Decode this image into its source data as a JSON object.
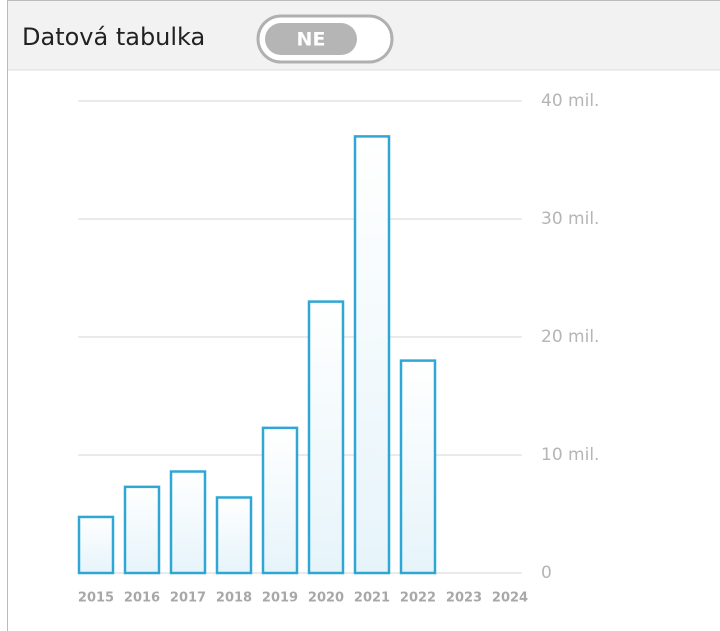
{
  "header": {
    "title": "Datová tabulka",
    "toggle": "NE"
  },
  "chart_data": {
    "type": "bar",
    "categories": [
      "2015",
      "2016",
      "2017",
      "2018",
      "2019",
      "2020",
      "2021",
      "2022",
      "2023",
      "2024"
    ],
    "values": [
      4750000,
      7300000,
      8600000,
      6400000,
      12300000,
      23000000,
      37000000,
      18000000,
      null,
      null
    ],
    "color": "#2fa7d4",
    "ylim": [
      0,
      40000000
    ],
    "yticks": [
      0,
      {
        "value": 10000000,
        "label": "10 mil."
      },
      {
        "value": 20000000,
        "label": "20 mil."
      },
      {
        "value": 30000000,
        "label": "30 mil."
      },
      {
        "value": 40000000,
        "label": "40 mil."
      }
    ],
    "grid": true
  }
}
